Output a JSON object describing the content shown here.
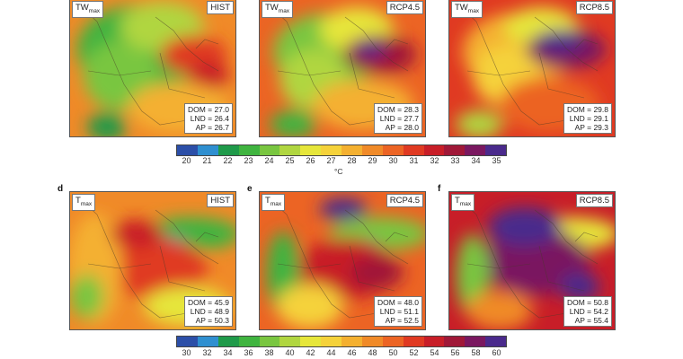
{
  "panels": [
    {
      "letter": "",
      "var": "TW",
      "sub": "max",
      "scenario": "HIST",
      "dom": "DOM = 27.0",
      "lnd": "LND = 26.4",
      "ap": "AP = 26.7",
      "theme": "tw-hist"
    },
    {
      "letter": "",
      "var": "TW",
      "sub": "max",
      "scenario": "RCP4.5",
      "dom": "DOM = 28.3",
      "lnd": "LND = 27.7",
      "ap": "AP = 28.0",
      "theme": "tw-45"
    },
    {
      "letter": "",
      "var": "TW",
      "sub": "max",
      "scenario": "RCP8.5",
      "dom": "DOM = 29.8",
      "lnd": "LND = 29.1",
      "ap": "AP = 29.3",
      "theme": "tw-85"
    },
    {
      "letter": "d",
      "var": "T",
      "sub": "max",
      "scenario": "HIST",
      "dom": "DOM = 45.9",
      "lnd": "LND = 48.9",
      "ap": "AP = 50.3",
      "theme": "t-hist"
    },
    {
      "letter": "e",
      "var": "T",
      "sub": "max",
      "scenario": "RCP4.5",
      "dom": "DOM = 48.0",
      "lnd": "LND = 51.1",
      "ap": "AP = 52.5",
      "theme": "t-45"
    },
    {
      "letter": "f",
      "var": "T",
      "sub": "max",
      "scenario": "RCP8.5",
      "dom": "DOM = 50.8",
      "lnd": "LND = 54.2",
      "ap": "AP = 55.4",
      "theme": "t-85"
    }
  ],
  "colorbar_top": {
    "ticks": [
      "20",
      "21",
      "22",
      "23",
      "24",
      "25",
      "26",
      "27",
      "28",
      "29",
      "30",
      "31",
      "32",
      "33",
      "34",
      "35"
    ],
    "unit": "°C",
    "colors": [
      "#2c4fa8",
      "#2f8fd0",
      "#1f9a4a",
      "#3fb43f",
      "#79c640",
      "#b0d640",
      "#e6e63a",
      "#f5d23a",
      "#f4b030",
      "#f08a28",
      "#ec6424",
      "#e03a22",
      "#c81e28",
      "#a01838",
      "#7a1860",
      "#4a2a8c"
    ]
  },
  "colorbar_bottom": {
    "ticks": [
      "30",
      "32",
      "34",
      "36",
      "38",
      "40",
      "42",
      "44",
      "46",
      "48",
      "50",
      "52",
      "54",
      "56",
      "58",
      "60"
    ],
    "colors": [
      "#2c4fa8",
      "#2f8fd0",
      "#1f9a4a",
      "#3fb43f",
      "#79c640",
      "#b0d640",
      "#e6e63a",
      "#f5d23a",
      "#f4b030",
      "#f08a28",
      "#ec6424",
      "#e03a22",
      "#c81e28",
      "#a01838",
      "#7a1860",
      "#4a2a8c"
    ]
  }
}
